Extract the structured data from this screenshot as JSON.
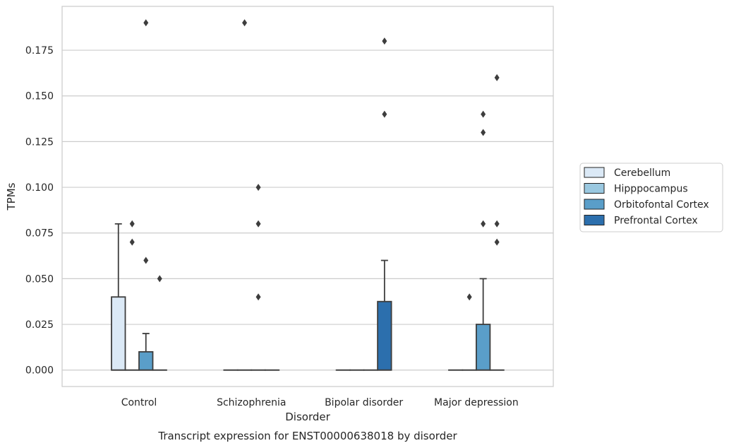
{
  "chart_data": {
    "type": "box",
    "xlabel": "Disorder",
    "ylabel": "TPMs",
    "caption": "Transcript expression for ENST00000638018 by disorder",
    "categories": [
      "Control",
      "Schizophrenia",
      "Bipolar disorder",
      "Major depression"
    ],
    "ylim": [
      -0.009,
      0.199
    ],
    "yticks": [
      0.0,
      0.025,
      0.05,
      0.075,
      0.1,
      0.125,
      0.15,
      0.175
    ],
    "ytick_labels": [
      "0.000",
      "0.025",
      "0.050",
      "0.075",
      "0.100",
      "0.125",
      "0.150",
      "0.175"
    ],
    "grid": "horizontal",
    "legend_position": "right",
    "series": [
      {
        "name": "Cerebellum",
        "color": "#dbe9f6",
        "boxes": [
          {
            "category": "Control",
            "q1": 0.0,
            "median": 0.0,
            "q3": 0.04,
            "whisker_low": 0.0,
            "whisker_high": 0.08,
            "outliers": []
          },
          {
            "category": "Schizophrenia",
            "q1": 0.0,
            "median": 0.0,
            "q3": 0.0,
            "whisker_low": 0.0,
            "whisker_high": 0.0,
            "outliers": []
          },
          {
            "category": "Bipolar disorder",
            "q1": 0.0,
            "median": 0.0,
            "q3": 0.0,
            "whisker_low": 0.0,
            "whisker_high": 0.0,
            "outliers": []
          },
          {
            "category": "Major depression",
            "q1": 0.0,
            "median": 0.0,
            "q3": 0.0,
            "whisker_low": 0.0,
            "whisker_high": 0.0,
            "outliers": []
          }
        ]
      },
      {
        "name": "Hipppocampus",
        "color": "#9ac8e0",
        "boxes": [
          {
            "category": "Control",
            "q1": 0.0,
            "median": 0.0,
            "q3": 0.0,
            "whisker_low": 0.0,
            "whisker_high": 0.0,
            "outliers": [
              0.08,
              0.07
            ]
          },
          {
            "category": "Schizophrenia",
            "q1": 0.0,
            "median": 0.0,
            "q3": 0.0,
            "whisker_low": 0.0,
            "whisker_high": 0.0,
            "outliers": [
              0.19
            ]
          },
          {
            "category": "Bipolar disorder",
            "q1": 0.0,
            "median": 0.0,
            "q3": 0.0,
            "whisker_low": 0.0,
            "whisker_high": 0.0,
            "outliers": []
          },
          {
            "category": "Major depression",
            "q1": 0.0,
            "median": 0.0,
            "q3": 0.0,
            "whisker_low": 0.0,
            "whisker_high": 0.0,
            "outliers": [
              0.04
            ]
          }
        ]
      },
      {
        "name": "Orbitofontal Cortex",
        "color": "#5a9ec9",
        "boxes": [
          {
            "category": "Control",
            "q1": 0.0,
            "median": 0.0,
            "q3": 0.01,
            "whisker_low": 0.0,
            "whisker_high": 0.02,
            "outliers": [
              0.19,
              0.06
            ]
          },
          {
            "category": "Schizophrenia",
            "q1": 0.0,
            "median": 0.0,
            "q3": 0.0,
            "whisker_low": 0.0,
            "whisker_high": 0.0,
            "outliers": [
              0.1,
              0.08,
              0.04
            ]
          },
          {
            "category": "Bipolar disorder",
            "q1": 0.0,
            "median": 0.0,
            "q3": 0.0,
            "whisker_low": 0.0,
            "whisker_high": 0.0,
            "outliers": []
          },
          {
            "category": "Major depression",
            "q1": 0.0,
            "median": 0.0,
            "q3": 0.025,
            "whisker_low": 0.0,
            "whisker_high": 0.05,
            "outliers": [
              0.14,
              0.13,
              0.08
            ]
          }
        ]
      },
      {
        "name": "Prefrontal Cortex",
        "color": "#2c6fad",
        "boxes": [
          {
            "category": "Control",
            "q1": 0.0,
            "median": 0.0,
            "q3": 0.0,
            "whisker_low": 0.0,
            "whisker_high": 0.0,
            "outliers": [
              0.05
            ]
          },
          {
            "category": "Schizophrenia",
            "q1": 0.0,
            "median": 0.0,
            "q3": 0.0,
            "whisker_low": 0.0,
            "whisker_high": 0.0,
            "outliers": []
          },
          {
            "category": "Bipolar disorder",
            "q1": 0.0,
            "median": 0.0,
            "q3": 0.0375,
            "whisker_low": 0.0,
            "whisker_high": 0.06,
            "outliers": [
              0.18,
              0.14
            ]
          },
          {
            "category": "Major depression",
            "q1": 0.0,
            "median": 0.0,
            "q3": 0.0,
            "whisker_low": 0.0,
            "whisker_high": 0.0,
            "outliers": [
              0.16,
              0.08,
              0.07
            ]
          }
        ]
      }
    ]
  }
}
